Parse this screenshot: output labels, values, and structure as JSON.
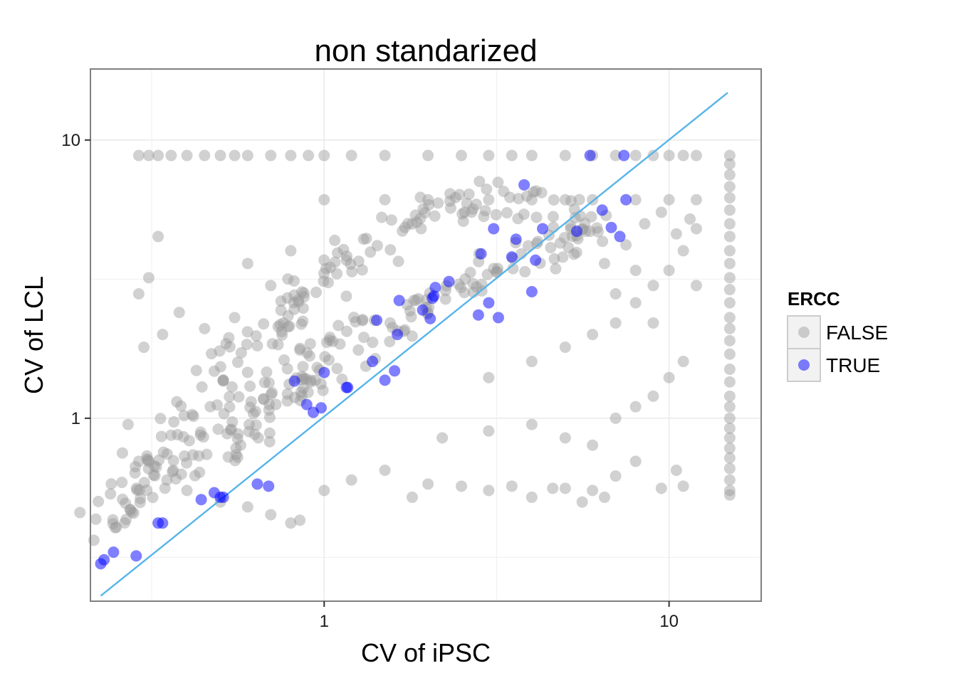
{
  "chart_data": {
    "type": "scatter",
    "title": "non standarized",
    "xlabel": "CV of iPSC",
    "ylabel": "CV of LCL",
    "x_scale": "log10",
    "y_scale": "log10",
    "xlim": [
      0.21,
      18.5
    ],
    "ylim": [
      0.22,
      18.0
    ],
    "x_ticks": [
      {
        "value": 1,
        "label": "1"
      },
      {
        "value": 10,
        "label": "10"
      }
    ],
    "y_ticks": [
      {
        "value": 1,
        "label": "1"
      },
      {
        "value": 10,
        "label": "10"
      }
    ],
    "grid": true,
    "legend": {
      "title": "ERCC",
      "placement": "right",
      "entries": [
        {
          "label": "FALSE",
          "color": "#999999"
        },
        {
          "label": "TRUE",
          "color": "#0000ff"
        }
      ]
    },
    "reference_line": {
      "color": "#56b4e9",
      "x": [
        0.225,
        14.8
      ],
      "y": [
        0.23,
        14.8
      ]
    },
    "series": [
      {
        "name": "FALSE",
        "color": "#999999",
        "alpha": 0.45,
        "cloud_note_points": [
          [
            0.23,
            0.4
          ],
          [
            0.25,
            0.5
          ],
          [
            0.27,
            0.62
          ],
          [
            0.3,
            0.55
          ],
          [
            0.32,
            0.75
          ],
          [
            0.35,
            0.7
          ],
          [
            0.38,
            0.9
          ],
          [
            0.42,
            1.0
          ],
          [
            0.45,
            1.2
          ],
          [
            0.5,
            1.3
          ],
          [
            0.55,
            1.5
          ],
          [
            0.6,
            1.7
          ],
          [
            0.65,
            1.9
          ],
          [
            0.7,
            2.1
          ],
          [
            0.75,
            2.4
          ],
          [
            0.8,
            2.6
          ],
          [
            0.9,
            2.9
          ],
          [
            1.0,
            3.2
          ],
          [
            1.1,
            3.5
          ],
          [
            1.2,
            3.8
          ],
          [
            1.4,
            4.2
          ],
          [
            1.6,
            4.6
          ],
          [
            1.8,
            5.0
          ],
          [
            2.0,
            5.5
          ],
          [
            2.3,
            5.8
          ],
          [
            2.6,
            6.0
          ],
          [
            3.0,
            6.2
          ],
          [
            3.5,
            6.1
          ],
          [
            4.0,
            6.0
          ],
          [
            5.0,
            5.8
          ],
          [
            0.5,
            0.8
          ],
          [
            0.6,
            0.95
          ],
          [
            0.7,
            1.1
          ],
          [
            0.8,
            1.2
          ],
          [
            0.9,
            1.4
          ],
          [
            1.0,
            1.6
          ],
          [
            1.2,
            1.8
          ],
          [
            1.4,
            2.0
          ],
          [
            1.6,
            2.2
          ],
          [
            1.8,
            2.4
          ],
          [
            2.0,
            2.6
          ],
          [
            2.4,
            2.9
          ],
          [
            2.8,
            3.2
          ],
          [
            3.2,
            3.5
          ],
          [
            3.6,
            3.8
          ],
          [
            4.0,
            4.0
          ],
          [
            4.5,
            4.2
          ],
          [
            5.0,
            4.5
          ],
          [
            5.5,
            4.6
          ],
          [
            6.0,
            4.8
          ],
          [
            0.28,
            0.45
          ],
          [
            0.33,
            0.6
          ],
          [
            0.4,
            0.68
          ],
          [
            0.48,
            0.85
          ],
          [
            0.58,
            1.0
          ],
          [
            0.68,
            1.15
          ],
          [
            0.78,
            1.35
          ],
          [
            0.88,
            1.55
          ],
          [
            0.98,
            1.75
          ],
          [
            1.15,
            2.05
          ]
        ],
        "points": [
          [
            0.29,
            8.8
          ],
          [
            0.31,
            8.8
          ],
          [
            0.33,
            8.8
          ],
          [
            0.36,
            8.8
          ],
          [
            0.4,
            8.8
          ],
          [
            0.45,
            8.8
          ],
          [
            0.5,
            8.8
          ],
          [
            0.55,
            8.8
          ],
          [
            0.6,
            8.8
          ],
          [
            0.7,
            8.8
          ],
          [
            0.8,
            8.8
          ],
          [
            0.9,
            8.8
          ],
          [
            1.0,
            8.8
          ],
          [
            1.2,
            8.8
          ],
          [
            1.5,
            8.8
          ],
          [
            2.0,
            8.8
          ],
          [
            2.5,
            8.8
          ],
          [
            3.0,
            8.8
          ],
          [
            3.5,
            8.8
          ],
          [
            4.0,
            8.8
          ],
          [
            5.0,
            8.8
          ],
          [
            6.0,
            8.8
          ],
          [
            7.0,
            8.8
          ],
          [
            8.0,
            8.8
          ],
          [
            9.0,
            8.8
          ],
          [
            10.0,
            8.8
          ],
          [
            11.0,
            8.8
          ],
          [
            12.0,
            8.8
          ],
          [
            1.0,
            6.1
          ],
          [
            1.5,
            6.1
          ],
          [
            2.0,
            6.1
          ],
          [
            3.0,
            6.1
          ],
          [
            4.0,
            6.1
          ],
          [
            5.0,
            6.1
          ],
          [
            6.0,
            6.1
          ],
          [
            8.0,
            6.1
          ],
          [
            10.0,
            6.1
          ],
          [
            12.0,
            6.1
          ],
          [
            0.33,
            4.5
          ],
          [
            0.31,
            3.2
          ],
          [
            0.29,
            2.8
          ],
          [
            0.34,
            2.0
          ],
          [
            0.38,
            2.4
          ],
          [
            0.45,
            2.1
          ],
          [
            0.55,
            2.3
          ],
          [
            0.6,
            3.6
          ],
          [
            0.7,
            3.0
          ],
          [
            0.8,
            4.0
          ],
          [
            0.3,
            1.8
          ],
          [
            0.27,
            0.95
          ],
          [
            0.26,
            0.75
          ],
          [
            0.29,
            0.7
          ],
          [
            0.35,
            0.6
          ],
          [
            0.4,
            0.55
          ],
          [
            0.5,
            0.5
          ],
          [
            0.6,
            0.48
          ],
          [
            0.7,
            0.45
          ],
          [
            0.8,
            0.42
          ],
          [
            0.85,
            0.43
          ],
          [
            1.0,
            0.55
          ],
          [
            1.2,
            0.6
          ],
          [
            1.5,
            0.65
          ],
          [
            1.8,
            0.52
          ],
          [
            2.0,
            0.58
          ],
          [
            2.5,
            0.57
          ],
          [
            3.0,
            0.55
          ],
          [
            3.5,
            0.57
          ],
          [
            4.0,
            0.52
          ],
          [
            4.6,
            0.56
          ],
          [
            5.0,
            0.56
          ],
          [
            5.6,
            0.5
          ],
          [
            6.0,
            0.55
          ],
          [
            6.5,
            0.52
          ],
          [
            7.0,
            0.62
          ],
          [
            8.0,
            0.7
          ],
          [
            9.5,
            0.56
          ],
          [
            10.5,
            0.65
          ],
          [
            11.0,
            0.57
          ],
          [
            2.2,
            0.85
          ],
          [
            3.0,
            0.9
          ],
          [
            4.0,
            0.95
          ],
          [
            5.0,
            0.85
          ],
          [
            6.0,
            0.8
          ],
          [
            7.0,
            1.0
          ],
          [
            8.0,
            1.1
          ],
          [
            9.0,
            1.2
          ],
          [
            10.0,
            1.4
          ],
          [
            11.0,
            1.6
          ],
          [
            3.0,
            1.4
          ],
          [
            4.0,
            1.6
          ],
          [
            5.0,
            1.8
          ],
          [
            6.0,
            2.0
          ],
          [
            7.0,
            2.2
          ],
          [
            8.0,
            2.6
          ],
          [
            9.0,
            3.0
          ],
          [
            10.0,
            3.4
          ],
          [
            11.0,
            4.0
          ],
          [
            12.0,
            3.0
          ],
          [
            6.5,
            3.6
          ],
          [
            7.5,
            4.2
          ],
          [
            8.5,
            5.0
          ],
          [
            9.5,
            5.5
          ],
          [
            10.5,
            4.6
          ],
          [
            11.5,
            5.2
          ],
          [
            12.0,
            4.8
          ],
          [
            8.0,
            3.4
          ],
          [
            7.0,
            2.8
          ],
          [
            9.0,
            2.2
          ],
          [
            15.0,
            8.8
          ],
          [
            15.0,
            8.2
          ],
          [
            15.0,
            7.5
          ],
          [
            15.0,
            6.8
          ],
          [
            15.0,
            6.2
          ],
          [
            15.0,
            5.6
          ],
          [
            15.0,
            5.0
          ],
          [
            15.0,
            4.5
          ],
          [
            15.0,
            4.0
          ],
          [
            15.0,
            3.6
          ],
          [
            15.0,
            3.2
          ],
          [
            15.0,
            2.9
          ],
          [
            15.0,
            2.6
          ],
          [
            15.0,
            2.3
          ],
          [
            15.0,
            2.1
          ],
          [
            15.0,
            1.9
          ],
          [
            15.0,
            1.7
          ],
          [
            15.0,
            1.5
          ],
          [
            15.0,
            1.35
          ],
          [
            15.0,
            1.2
          ],
          [
            15.0,
            1.1
          ],
          [
            15.0,
            1.0
          ],
          [
            15.0,
            0.92
          ],
          [
            15.0,
            0.85
          ],
          [
            15.0,
            0.78
          ],
          [
            15.0,
            0.72
          ],
          [
            15.0,
            0.66
          ],
          [
            15.0,
            0.6
          ],
          [
            15.0,
            0.55
          ],
          [
            15.0,
            0.53
          ]
        ]
      },
      {
        "name": "TRUE",
        "color": "#0000ff",
        "alpha": 0.5,
        "points": [
          [
            0.225,
            0.3
          ],
          [
            0.23,
            0.31
          ],
          [
            0.245,
            0.33
          ],
          [
            0.285,
            0.32
          ],
          [
            0.33,
            0.42
          ],
          [
            0.34,
            0.42
          ],
          [
            0.44,
            0.51
          ],
          [
            0.48,
            0.54
          ],
          [
            0.5,
            0.52
          ],
          [
            0.51,
            0.52
          ],
          [
            0.64,
            0.58
          ],
          [
            0.69,
            0.57
          ],
          [
            0.82,
            1.36
          ],
          [
            0.89,
            1.12
          ],
          [
            0.93,
            1.05
          ],
          [
            0.98,
            1.09
          ],
          [
            1.0,
            1.46
          ],
          [
            1.16,
            1.29
          ],
          [
            1.17,
            1.29
          ],
          [
            1.38,
            1.6
          ],
          [
            1.42,
            2.25
          ],
          [
            1.5,
            1.37
          ],
          [
            1.6,
            1.48
          ],
          [
            1.63,
            2.0
          ],
          [
            1.65,
            2.65
          ],
          [
            1.93,
            2.45
          ],
          [
            2.03,
            2.28
          ],
          [
            2.06,
            2.7
          ],
          [
            2.08,
            2.75
          ],
          [
            2.1,
            2.95
          ],
          [
            2.3,
            3.1
          ],
          [
            2.8,
            2.35
          ],
          [
            2.85,
            3.9
          ],
          [
            3.0,
            2.6
          ],
          [
            3.1,
            4.8
          ],
          [
            3.2,
            2.3
          ],
          [
            3.5,
            3.8
          ],
          [
            3.6,
            4.4
          ],
          [
            3.8,
            6.9
          ],
          [
            4.0,
            2.85
          ],
          [
            4.1,
            3.7
          ],
          [
            4.3,
            4.8
          ],
          [
            5.4,
            4.7
          ],
          [
            5.9,
            8.8
          ],
          [
            6.4,
            5.6
          ],
          [
            6.8,
            4.85
          ],
          [
            7.2,
            4.5
          ],
          [
            7.4,
            8.8
          ],
          [
            7.5,
            6.1
          ]
        ]
      }
    ]
  }
}
